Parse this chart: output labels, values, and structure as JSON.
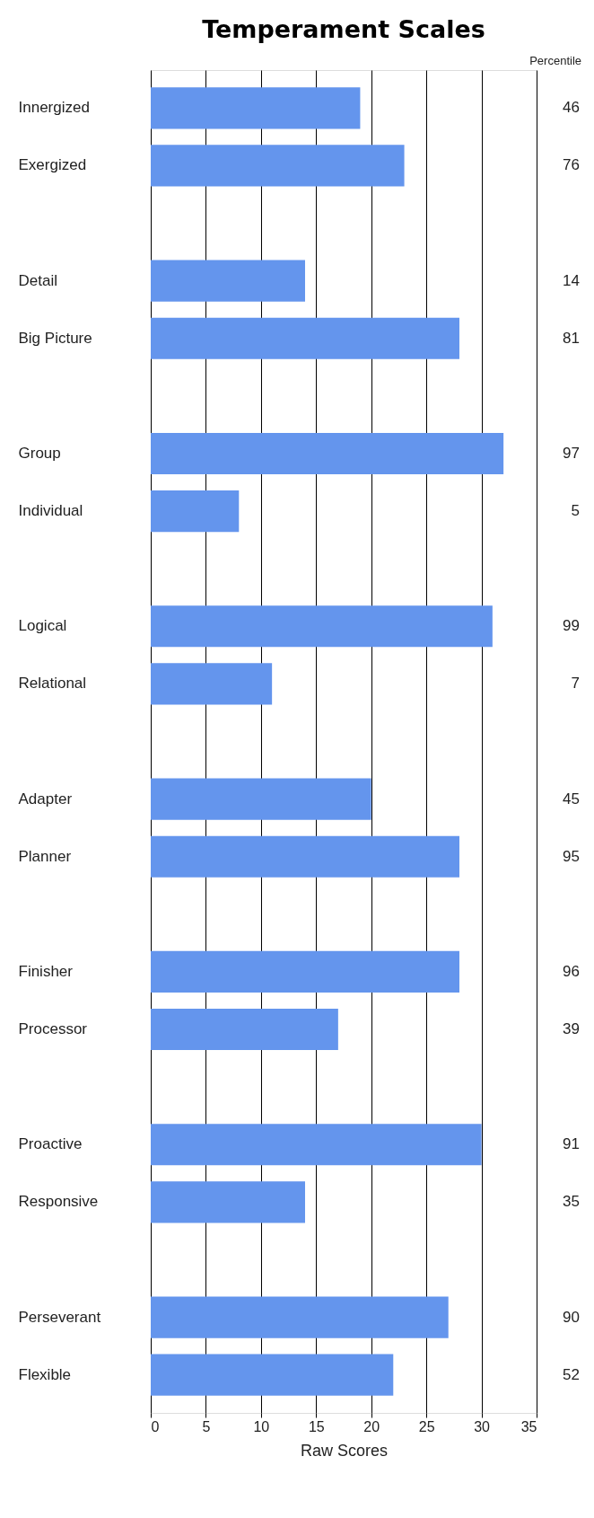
{
  "chart_data": {
    "type": "bar",
    "orientation": "horizontal",
    "title": "Temperament Scales",
    "xlabel": "Raw Scores",
    "y2label": "Percentile",
    "categories": [
      "Innergized",
      "Exergized",
      null,
      "Detail",
      "Big Picture",
      null,
      "Group",
      "Individual",
      null,
      "Logical",
      "Relational",
      null,
      "Adapter",
      "Planner",
      null,
      "Finisher",
      "Processor",
      null,
      "Proactive",
      "Responsive",
      null,
      "Perseverant",
      "Flexible"
    ],
    "values": [
      19,
      23,
      null,
      14,
      28,
      null,
      32,
      8,
      null,
      31,
      11,
      null,
      20,
      28,
      null,
      28,
      17,
      null,
      30,
      14,
      null,
      27,
      22
    ],
    "annotations": [
      "46",
      "76",
      "14",
      "81",
      "97",
      "5",
      "99",
      "7",
      "45",
      "95",
      "96",
      "39",
      "91",
      "35",
      "90",
      "52"
    ],
    "color": "#6495ed",
    "xlim": [
      0,
      35
    ],
    "xticks": [
      0,
      5,
      10,
      15,
      20,
      25,
      30,
      35
    ],
    "grid": "x"
  }
}
